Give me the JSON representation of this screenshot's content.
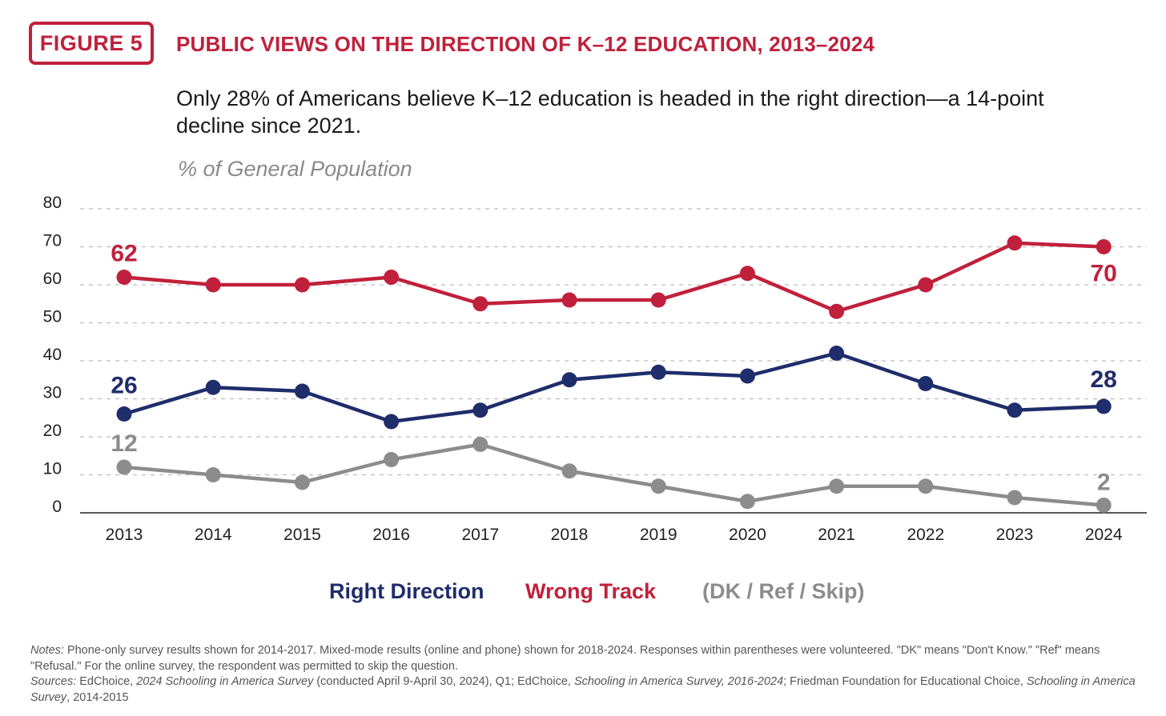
{
  "figure": {
    "badge": "FIGURE 5",
    "title": "PUBLIC VIEWS ON THE DIRECTION OF K–12 EDUCATION, 2013–2024",
    "subtitle": "Only 28% of Americans believe K–12 education is headed in the right direction—a 14-point decline since 2021.",
    "unit_label": "% of General Population",
    "brand_color": "#c0203b"
  },
  "chart_data": {
    "type": "line",
    "title": "PUBLIC VIEWS ON THE DIRECTION OF K–12 EDUCATION, 2013–2024",
    "ylabel": "% of General Population",
    "xlabel": "",
    "ylim": [
      0,
      80
    ],
    "yticks": [
      "0",
      "10",
      "20",
      "30",
      "40",
      "50",
      "60",
      "70",
      "80"
    ],
    "grid": "horizontal dashed",
    "legend_position": "bottom-center",
    "categories": [
      "2013",
      "2014",
      "2015",
      "2016",
      "2017",
      "2018",
      "2019",
      "2020",
      "2021",
      "2022",
      "2023",
      "2024"
    ],
    "series": [
      {
        "name": "Right Direction",
        "color": "#1f2d6b",
        "values": [
          26,
          33,
          32,
          24,
          27,
          35,
          37,
          36,
          42,
          34,
          27,
          28
        ],
        "labels": {
          "first": "26",
          "last": "28"
        }
      },
      {
        "name": "Wrong Track",
        "color": "#c0203b",
        "values": [
          62,
          60,
          60,
          62,
          55,
          56,
          56,
          63,
          53,
          60,
          71,
          70
        ],
        "labels": {
          "first": "62",
          "last": "70"
        }
      },
      {
        "name": "(DK / Ref / Skip)",
        "color": "#8c8c8c",
        "values": [
          12,
          10,
          8,
          14,
          18,
          11,
          7,
          3,
          7,
          7,
          4,
          2
        ],
        "labels": {
          "first": "12",
          "last": "2"
        }
      }
    ]
  },
  "notes": {
    "notes_label": "Notes:",
    "notes_text": " Phone-only survey results shown for 2014-2017. Mixed-mode results (online and phone) shown for 2018-2024. Responses within parentheses were volunteered. \"DK\" means \"Don't Know.\" \"Ref\" means \"Refusal.\" For the online survey, the respondent was permitted to skip the question.",
    "sources_label": "Sources:",
    "sources_1": " EdChoice, ",
    "sources_2": "2024 Schooling in America Survey",
    "sources_3": " (conducted April 9-April 30, 2024), Q1; EdChoice, ",
    "sources_4": "Schooling in America Survey, 2016-2024",
    "sources_5": "; Friedman Foundation for Educational Choice, ",
    "sources_6": "Schooling in America Survey",
    "sources_7": ", 2014-2015"
  }
}
